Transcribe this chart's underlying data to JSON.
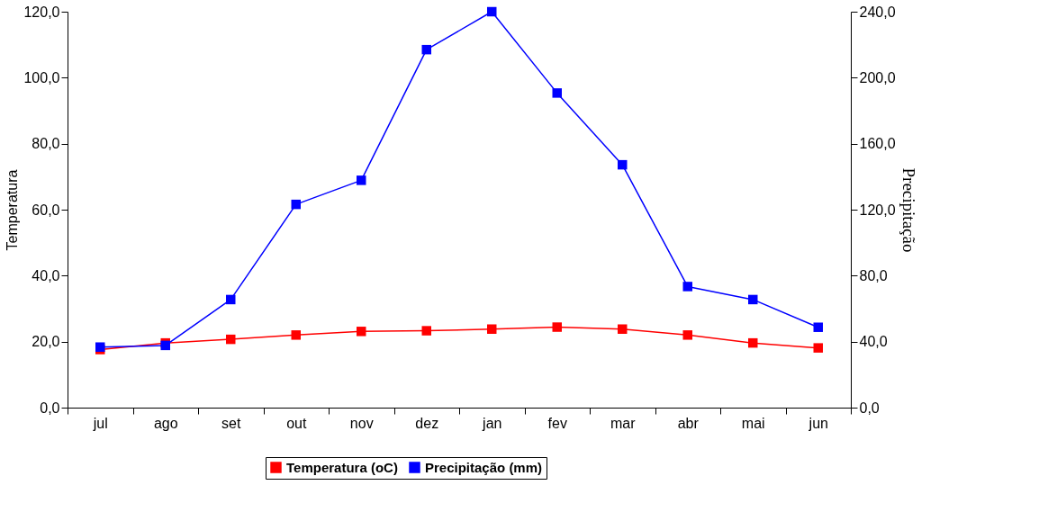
{
  "chart_data": {
    "type": "line",
    "xlabel": null,
    "ylabel": "Temperatura",
    "y2label": "Precipitação",
    "categories": [
      "jul",
      "ago",
      "set",
      "out",
      "nov",
      "dez",
      "jan",
      "fev",
      "mar",
      "abr",
      "mai",
      "jun"
    ],
    "series": [
      {
        "name": "Temperatura (oC)",
        "color": "#ff0000",
        "values": [
          17.6,
          19.6,
          20.7,
          22.0,
          23.1,
          23.3,
          23.8,
          24.4,
          23.8,
          22.0,
          19.6,
          18.1
        ]
      },
      {
        "name": "Precipitação (mm)",
        "color": "#0000ff",
        "axis": "y2",
        "values": [
          36.7,
          37.7,
          65.5,
          123.2,
          137.8,
          217,
          240,
          190.7,
          147.2,
          73.4,
          65.5,
          48.7
        ]
      }
    ],
    "ylim": [
      0,
      120
    ],
    "yticks": [
      {
        "value": 0,
        "label": "0,0"
      },
      {
        "value": 20,
        "label": "20,0"
      },
      {
        "value": 40,
        "label": "40,0"
      },
      {
        "value": 60,
        "label": "60,0"
      },
      {
        "value": 80,
        "label": "80,0"
      },
      {
        "value": 100,
        "label": "100,0"
      },
      {
        "value": 120,
        "label": "120,0"
      }
    ],
    "y2lim": [
      0,
      240
    ],
    "y2ticks": [
      {
        "value": 0,
        "label": "0,0"
      },
      {
        "value": 40,
        "label": "40,0"
      },
      {
        "value": 80,
        "label": "80,0"
      },
      {
        "value": 120,
        "label": "120,0"
      },
      {
        "value": 160,
        "label": "160,0"
      },
      {
        "value": 200,
        "label": "200,0"
      },
      {
        "value": 240,
        "label": "240,0"
      }
    ],
    "grid": false,
    "legend": "bottom",
    "marker": "square",
    "line_style": "solid"
  }
}
